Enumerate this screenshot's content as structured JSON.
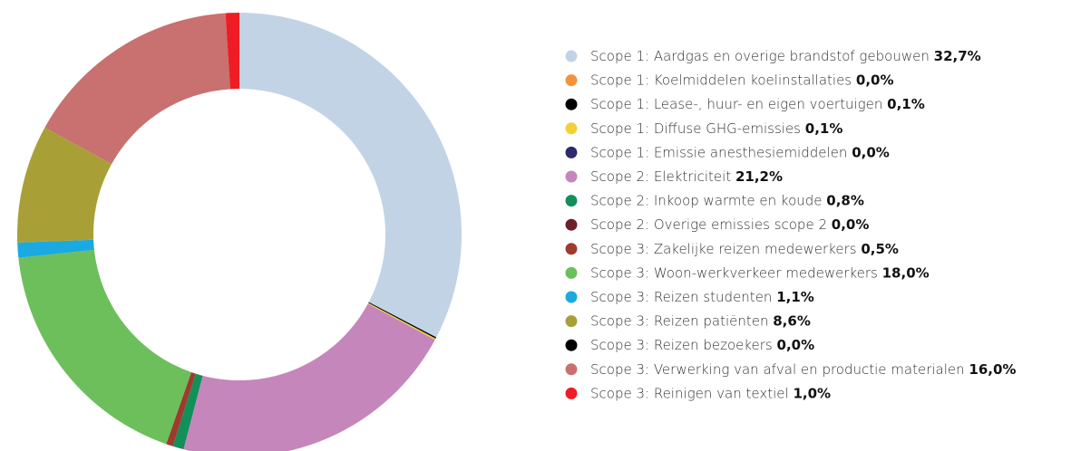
{
  "chart_data": {
    "type": "pie",
    "categories": [
      "Scope 1: Aardgas en overige brandstof gebouwen",
      "Scope 1: Koelmiddelen koelinstallaties",
      "Scope 1: Lease-, huur- en eigen voertuigen",
      "Scope 1: Diffuse GHG-emissies",
      "Scope 1: Emissie anesthesiemiddelen",
      "Scope 2: Elektriciteit",
      "Scope 2: Inkoop warmte en koude",
      "Scope 2: Overige emissies scope 2",
      "Scope 3: Zakelijke reizen medewerkers",
      "Scope 3: Woon-werkverkeer medewerkers",
      "Scope 3: Reizen studenten",
      "Scope 3: Reizen patiënten",
      "Scope 3: Reizen bezoekers",
      "Scope 3: Verwerking van afval en productie materialen",
      "Scope 3: Reinigen van textiel"
    ],
    "values": [
      32.7,
      0.0,
      0.1,
      0.1,
      0.0,
      21.2,
      0.8,
      0.0,
      0.5,
      18.0,
      1.1,
      8.6,
      0.0,
      16.0,
      1.0
    ],
    "value_labels": [
      "32,7%",
      "0,0%",
      "0,1%",
      "0,1%",
      "0,0%",
      "21,2%",
      "0,8%",
      "0,0%",
      "0,5%",
      "18,0%",
      "1,1%",
      "8,6%",
      "0,0%",
      "16,0%",
      "1,0%"
    ],
    "colors": [
      "#c2d3e6",
      "#f5923e",
      "#000000",
      "#f5cf36",
      "#2e2a6e",
      "#c586bc",
      "#11905a",
      "#6e1f2a",
      "#a03a2e",
      "#6dbf5c",
      "#1ba9e1",
      "#a8a037",
      "#000000",
      "#c87170",
      "#ee1c25"
    ],
    "legend": "right"
  }
}
